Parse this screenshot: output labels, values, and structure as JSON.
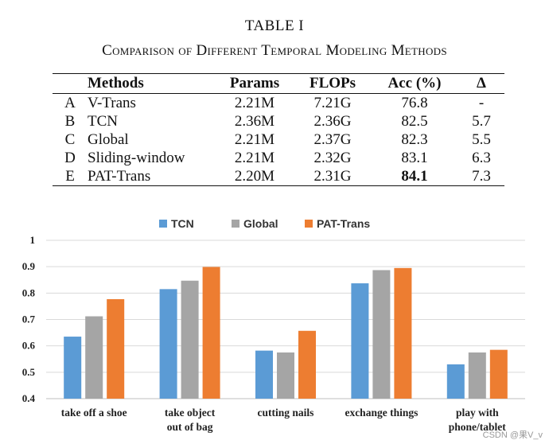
{
  "table": {
    "label": "TABLE I",
    "title": "Comparison of Different Temporal Modeling Methods",
    "headers": [
      "",
      "Methods",
      "Params",
      "FLOPs",
      "Acc (%)",
      "Δ"
    ],
    "rows": [
      {
        "id": "A",
        "method": "V-Trans",
        "params": "2.21M",
        "flops": "7.21G",
        "acc": "76.8",
        "delta": "-"
      },
      {
        "id": "B",
        "method": "TCN",
        "params": "2.36M",
        "flops": "2.36G",
        "acc": "82.5",
        "delta": "5.7"
      },
      {
        "id": "C",
        "method": "Global",
        "params": "2.21M",
        "flops": "2.37G",
        "acc": "82.3",
        "delta": "5.5"
      },
      {
        "id": "D",
        "method": "Sliding-window",
        "params": "2.21M",
        "flops": "2.32G",
        "acc": "83.1",
        "delta": "6.3"
      },
      {
        "id": "E",
        "method": "PAT-Trans",
        "params": "2.20M",
        "flops": "2.31G",
        "acc": "84.1",
        "delta": "7.3"
      }
    ]
  },
  "chart_data": {
    "type": "bar",
    "title": "",
    "xlabel": "",
    "ylabel": "",
    "ylim": [
      0.4,
      1
    ],
    "yticks": [
      "0.4",
      "0.5",
      "0.6",
      "0.7",
      "0.8",
      "0.9",
      "1"
    ],
    "legend_position": "top",
    "categories": [
      [
        "take off a shoe"
      ],
      [
        "take object",
        "out of bag"
      ],
      [
        "cutting nails"
      ],
      [
        "exchange things"
      ],
      [
        "play with",
        "phone/tablet"
      ]
    ],
    "series": [
      {
        "name": "TCN",
        "color": "#5b9bd5",
        "values": [
          0.635,
          0.815,
          0.582,
          0.837,
          0.53
        ]
      },
      {
        "name": "Global",
        "color": "#a5a5a5",
        "values": [
          0.712,
          0.847,
          0.575,
          0.887,
          0.575
        ]
      },
      {
        "name": "PAT-Trans",
        "color": "#ed7d31",
        "values": [
          0.777,
          0.899,
          0.657,
          0.895,
          0.585
        ]
      }
    ]
  },
  "watermark": "CSDN @果V_v"
}
